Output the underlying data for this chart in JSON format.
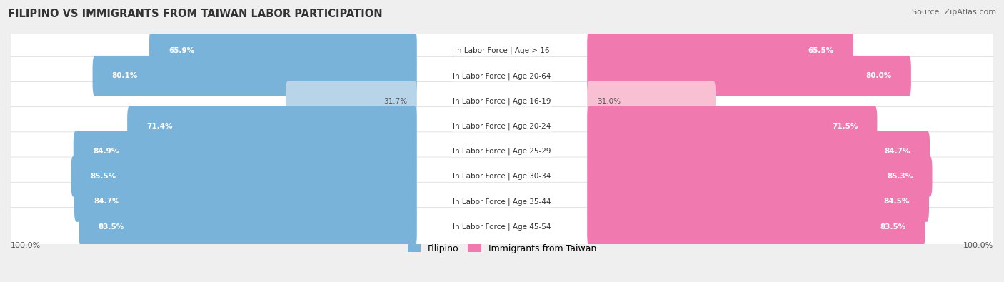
{
  "title": "FILIPINO VS IMMIGRANTS FROM TAIWAN LABOR PARTICIPATION",
  "source": "Source: ZipAtlas.com",
  "categories": [
    "In Labor Force | Age > 16",
    "In Labor Force | Age 20-64",
    "In Labor Force | Age 16-19",
    "In Labor Force | Age 20-24",
    "In Labor Force | Age 25-29",
    "In Labor Force | Age 30-34",
    "In Labor Force | Age 35-44",
    "In Labor Force | Age 45-54"
  ],
  "filipino_values": [
    65.9,
    80.1,
    31.7,
    71.4,
    84.9,
    85.5,
    84.7,
    83.5
  ],
  "taiwan_values": [
    65.5,
    80.0,
    31.0,
    71.5,
    84.7,
    85.3,
    84.5,
    83.5
  ],
  "filipino_color": "#7ab3d9",
  "filipino_light_color": "#b8d4e8",
  "taiwan_color": "#f07ab0",
  "taiwan_light_color": "#f9c0d4",
  "bg_color": "#efefef",
  "max_value": 100.0,
  "legend_filipino": "Filipino",
  "legend_taiwan": "Immigrants from Taiwan"
}
